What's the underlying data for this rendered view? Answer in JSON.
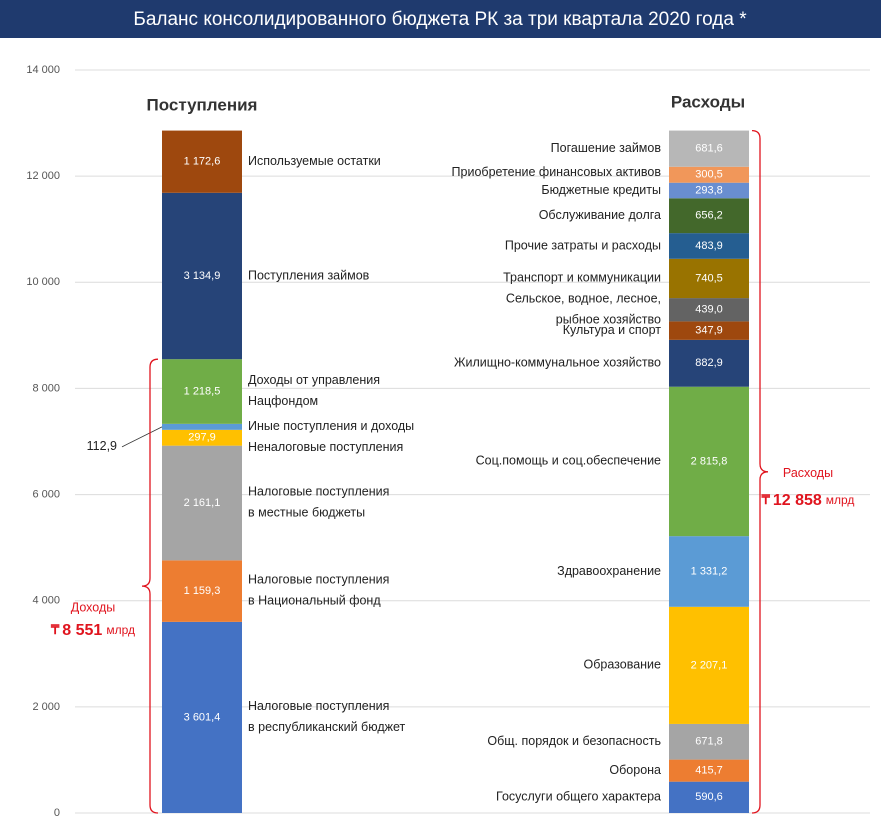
{
  "chart_data": {
    "type": "stacked_column",
    "title": "Баланс консолидированного бюджета РК за три квартала 2020 года *",
    "ylim": [
      0,
      14000
    ],
    "yticks": [
      0,
      {
        "value": 2000,
        "label": "2 000"
      },
      {
        "value": 4000,
        "label": "4 000"
      },
      {
        "value": 6000,
        "label": "6 000"
      },
      {
        "value": 8000,
        "label": "8 000"
      },
      {
        "value": 10000,
        "label": "10 000"
      },
      {
        "value": 12000,
        "label": "12 000"
      },
      {
        "value": 14000,
        "label": "14 000"
      }
    ],
    "grid": true,
    "stacks": [
      {
        "name": "Поступления",
        "label_side": "right",
        "series": [
          {
            "name": "Налоговые поступления\nв республиканский бюджет",
            "color": "#4472c4",
            "value": 3601.4,
            "value_label": "3 601,4"
          },
          {
            "name": "Налоговые поступления\nв Национальный фонд",
            "color": "#ed7d31",
            "value": 1159.3,
            "value_label": "1 159,3"
          },
          {
            "name": "Налоговые поступления\nв местные бюджеты",
            "color": "#a5a5a5",
            "value": 2161.1,
            "value_label": "2 161,1"
          },
          {
            "name": "Неналоговые поступления",
            "color": "#ffc000",
            "value": 297.9,
            "value_label": "297,9"
          },
          {
            "name": "Иные поступления и доходы",
            "color": "#5b9bd5",
            "value": 112.9,
            "value_label": "112,9"
          },
          {
            "name": "Доходы от управления\nНацфондом",
            "color": "#70ad47",
            "value": 1218.5,
            "value_label": "1 218,5"
          },
          {
            "name": "Поступления займов",
            "color": "#264478",
            "value": 3134.9,
            "value_label": "3 134,9"
          },
          {
            "name": "Используемые остатки",
            "color": "#9e480e",
            "value": 1172.6,
            "value_label": "1 172,6"
          }
        ],
        "bracket": {
          "label": "Доходы",
          "currency": "₸",
          "total": 8551,
          "total_label": "8 551",
          "unit": "млрд"
        }
      },
      {
        "name": "Расходы",
        "label_side": "left",
        "series": [
          {
            "name": "Госуслуги общего характера",
            "color": "#4472c4",
            "value": 590.6,
            "value_label": "590,6"
          },
          {
            "name": "Оборона",
            "color": "#ed7d31",
            "value": 415.7,
            "value_label": "415,7"
          },
          {
            "name": "Общ. порядок и безопасность",
            "color": "#a5a5a5",
            "value": 671.8,
            "value_label": "671,8"
          },
          {
            "name": "Образование",
            "color": "#ffc000",
            "value": 2207.1,
            "value_label": "2 207,1"
          },
          {
            "name": "Здравоохранение",
            "color": "#5b9bd5",
            "value": 1331.2,
            "value_label": "1 331,2"
          },
          {
            "name": "Соц.помощь и соц.обеспечение",
            "color": "#70ad47",
            "value": 2815.8,
            "value_label": "2 815,8"
          },
          {
            "name": "Жилищно-коммунальное хозяйство",
            "color": "#264478",
            "value": 882.9,
            "value_label": "882,9"
          },
          {
            "name": "Культура и спорт",
            "color": "#9e480e",
            "value": 347.9,
            "value_label": "347,9"
          },
          {
            "name": "Сельское, водное, лесное,\nрыбное хозяйство",
            "color": "#636363",
            "value": 439.0,
            "value_label": "439,0"
          },
          {
            "name": "Транспорт и коммуникации",
            "color": "#997300",
            "value": 740.5,
            "value_label": "740,5"
          },
          {
            "name": "Прочие затраты и расходы",
            "color": "#255e91",
            "value": 483.9,
            "value_label": "483,9"
          },
          {
            "name": "Обслуживание долга",
            "color": "#43682b",
            "value": 656.2,
            "value_label": "656,2"
          },
          {
            "name": "Бюджетные кредиты",
            "color": "#698ed0",
            "value": 293.8,
            "value_label": "293,8"
          },
          {
            "name": "Приобретение финансовых активов",
            "color": "#f1975a",
            "value": 300.5,
            "value_label": "300,5"
          },
          {
            "name": "Погашение займов",
            "color": "#b7b7b7",
            "value": 681.6,
            "value_label": "681,6"
          }
        ],
        "bracket": {
          "label": "Расходы",
          "currency": "₸",
          "total": 12858,
          "total_label": "12 858",
          "unit": "млрд"
        }
      }
    ]
  }
}
